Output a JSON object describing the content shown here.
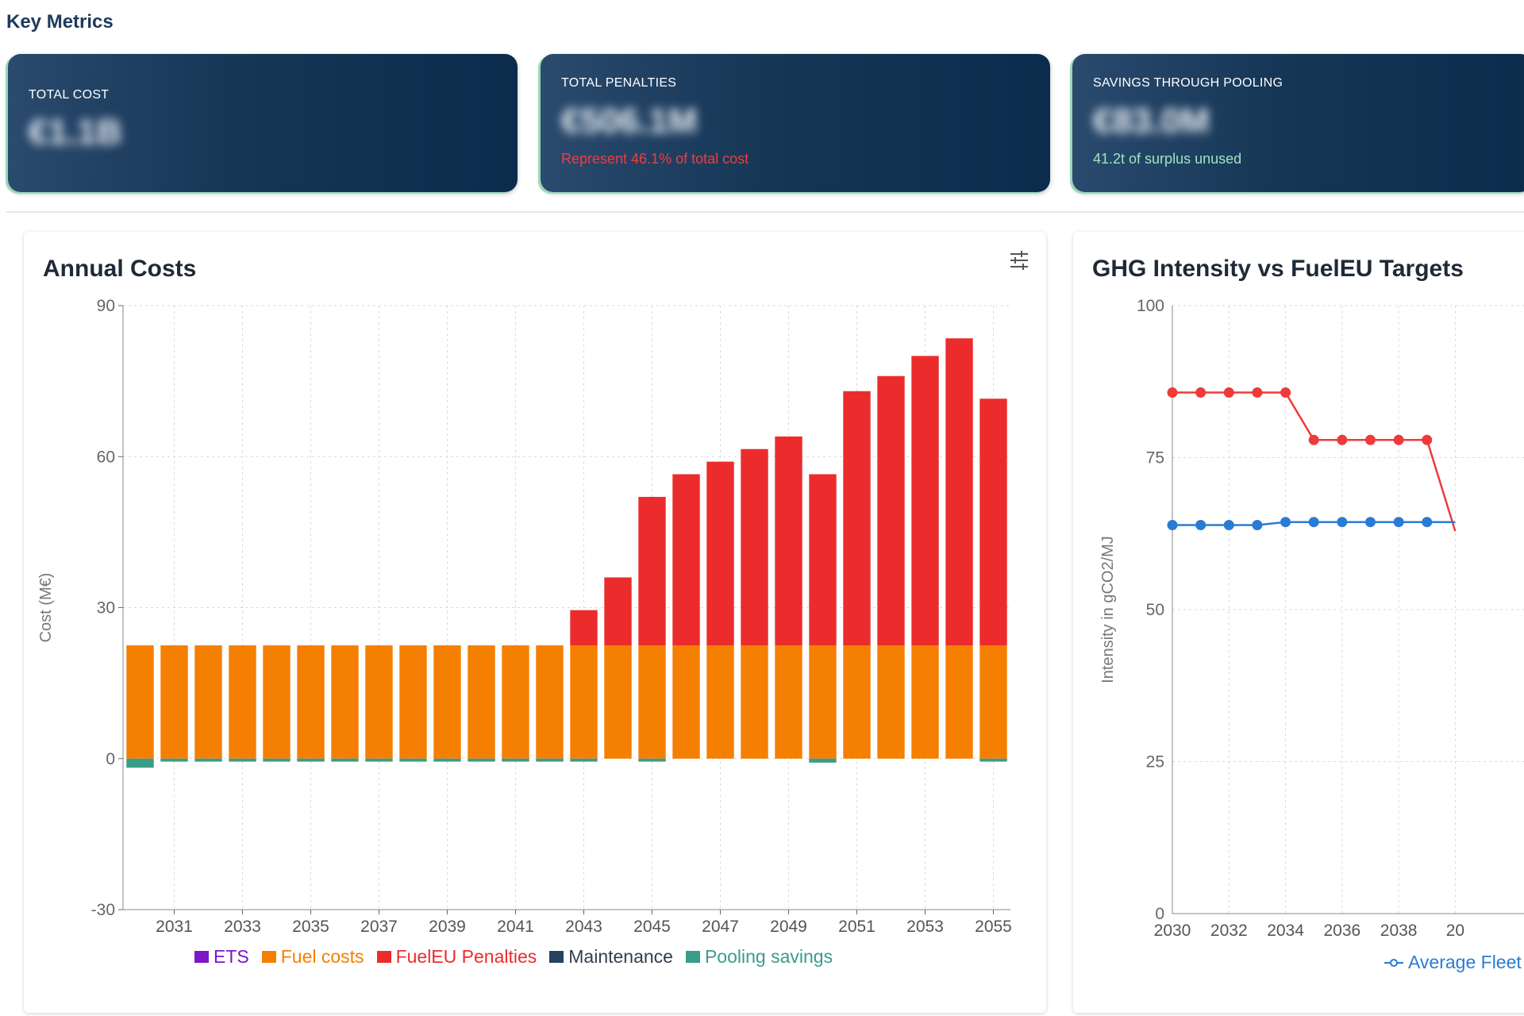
{
  "section_title": "Key Metrics",
  "metrics": [
    {
      "label": "TOTAL COST",
      "value": "€1.1B",
      "sub": "",
      "sub_color": ""
    },
    {
      "label": "TOTAL PENALTIES",
      "value": "€506.1M",
      "sub": "Represent 46.1% of total cost",
      "sub_color": "#ef3e3e"
    },
    {
      "label": "SAVINGS THROUGH POOLING",
      "value": "€83.0M",
      "sub": "41.2t of surplus unused",
      "sub_color": "#9ee3c1"
    }
  ],
  "annual_costs": {
    "title": "Annual Costs",
    "settings_icon": "settings-sliders-icon",
    "chart_data": {
      "type": "bar",
      "stacked": true,
      "ylabel": "Cost (M€)",
      "ylim": [
        -30,
        90
      ],
      "yticks": [
        -30,
        0,
        30,
        60,
        90
      ],
      "xtick_labels": [
        "2031",
        "2033",
        "2035",
        "2037",
        "2039",
        "2041",
        "2043",
        "2045",
        "2047",
        "2049",
        "2051",
        "2053",
        "2055"
      ],
      "categories": [
        "2030",
        "2031",
        "2032",
        "2033",
        "2034",
        "2035",
        "2036",
        "2037",
        "2038",
        "2039",
        "2040",
        "2041",
        "2042",
        "2043",
        "2044",
        "2045",
        "2046",
        "2047",
        "2048",
        "2049",
        "2050",
        "2051",
        "2052",
        "2053",
        "2054",
        "2055"
      ],
      "series": [
        {
          "name": "ETS",
          "color": "#7b16c9",
          "values": [
            0,
            0,
            0,
            0,
            0,
            0,
            0,
            0,
            0,
            0,
            0,
            0,
            0,
            0,
            0,
            0,
            0,
            0,
            0,
            0,
            0,
            0,
            0,
            0,
            0,
            0
          ]
        },
        {
          "name": "Fuel costs",
          "color": "#f57f00",
          "values": [
            22.5,
            22.5,
            22.5,
            22.5,
            22.5,
            22.5,
            22.5,
            22.5,
            22.5,
            22.5,
            22.5,
            22.5,
            22.5,
            22.5,
            22.5,
            22.5,
            22.5,
            22.5,
            22.5,
            22.5,
            22.5,
            22.5,
            22.5,
            22.5,
            22.5,
            22.5
          ]
        },
        {
          "name": "FuelEU Penalties",
          "color": "#ec2c2c",
          "values": [
            0,
            0,
            0,
            0,
            0,
            0,
            0,
            0,
            0,
            0,
            0,
            0,
            0,
            7,
            13.5,
            29.5,
            34,
            36.5,
            39,
            41.5,
            34,
            50.5,
            53.5,
            57.5,
            61,
            49
          ]
        },
        {
          "name": "Maintenance",
          "color": "#27425e",
          "values": [
            0,
            0,
            0,
            0,
            0,
            0,
            0,
            0,
            0,
            0,
            0,
            0,
            0,
            0,
            0,
            0,
            0,
            0,
            0,
            0,
            0,
            0,
            0,
            0,
            0,
            0
          ]
        },
        {
          "name": "Pooling savings",
          "color": "#3a9c8a",
          "values": [
            -1.8,
            -0.6,
            -0.6,
            -0.6,
            -0.6,
            -0.6,
            -0.6,
            -0.6,
            -0.6,
            -0.6,
            -0.6,
            -0.6,
            -0.6,
            -0.6,
            0,
            -0.6,
            0,
            0,
            0,
            0,
            -0.8,
            0,
            0,
            0,
            0,
            -0.6
          ]
        }
      ]
    }
  },
  "ghg": {
    "title": "GHG Intensity vs FuelEU Targets",
    "chart_data": {
      "type": "line",
      "ylabel": "Intensity in gCO2/MJ",
      "ylim": [
        0,
        100
      ],
      "yticks": [
        0,
        25,
        50,
        75,
        100
      ],
      "xtick_labels": [
        "2030",
        "2032",
        "2034",
        "2036",
        "2038",
        "20"
      ],
      "x": [
        2030,
        2031,
        2032,
        2033,
        2034,
        2035,
        2036,
        2037,
        2038,
        2039,
        2040
      ],
      "series": [
        {
          "name": "",
          "color": "#ef3a3a",
          "values": [
            85.7,
            85.7,
            85.7,
            85.7,
            85.7,
            77.9,
            77.9,
            77.9,
            77.9,
            77.9,
            62.9
          ]
        },
        {
          "name": "Average Fleet",
          "color": "#2a7bd4",
          "values": [
            63.9,
            63.9,
            63.9,
            63.9,
            64.4,
            64.4,
            64.4,
            64.4,
            64.4,
            64.4,
            64.4
          ]
        }
      ],
      "legend_label": "Average Fleet"
    }
  }
}
